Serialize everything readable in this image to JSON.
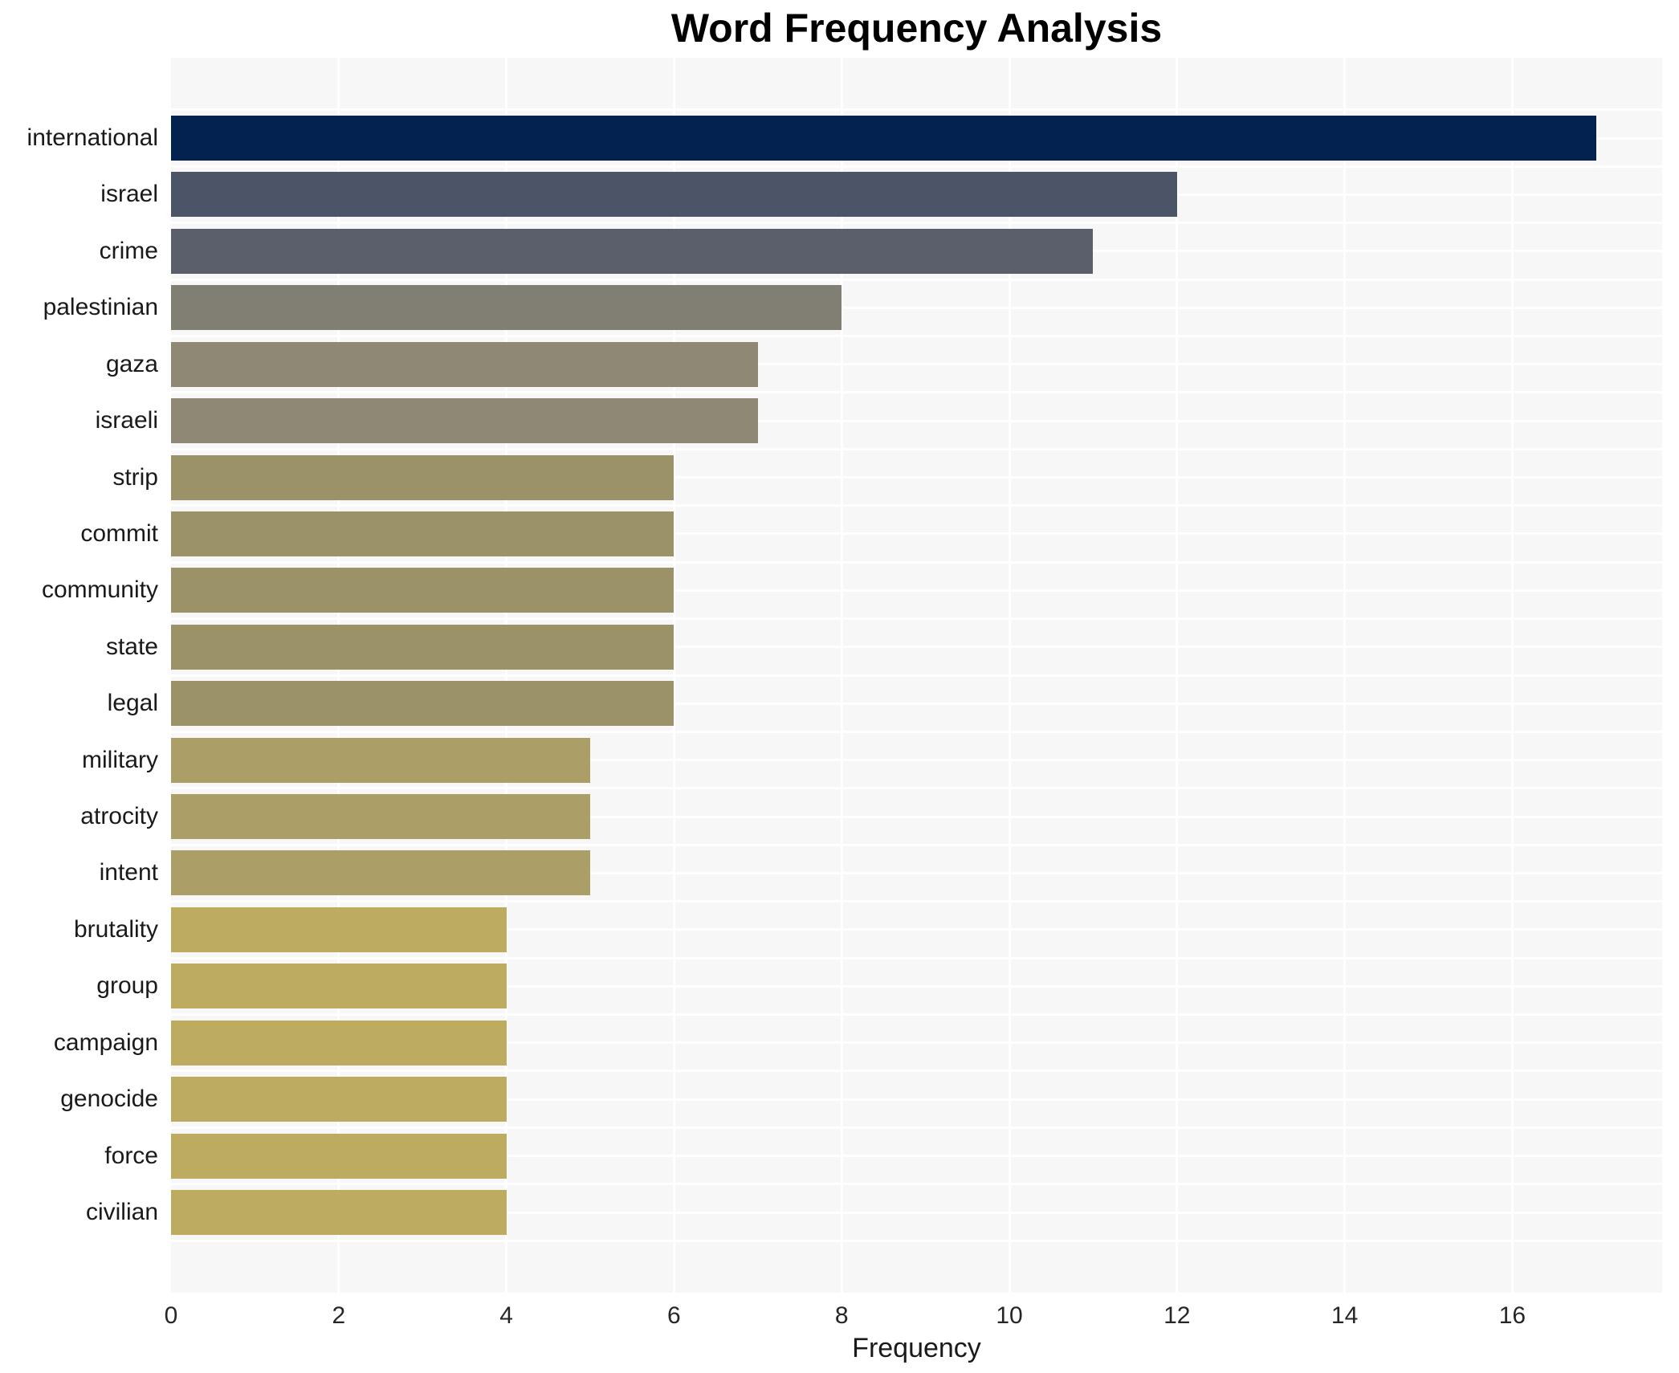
{
  "chart_data": {
    "type": "bar",
    "orientation": "horizontal",
    "title": "Word Frequency Analysis",
    "xlabel": "Frequency",
    "ylabel": "",
    "categories": [
      "international",
      "israel",
      "crime",
      "palestinian",
      "gaza",
      "israeli",
      "strip",
      "commit",
      "community",
      "state",
      "legal",
      "military",
      "atrocity",
      "intent",
      "brutality",
      "group",
      "campaign",
      "genocide",
      "force",
      "civilian"
    ],
    "values": [
      17,
      12,
      11,
      8,
      7,
      7,
      6,
      6,
      6,
      6,
      6,
      5,
      5,
      5,
      4,
      4,
      4,
      4,
      4,
      4
    ],
    "bar_colors": [
      "#032250",
      "#4c5468",
      "#5a5f6b",
      "#817e74",
      "#8e8874",
      "#8e8874",
      "#9c9267",
      "#9c9267",
      "#9c9267",
      "#9c9267",
      "#9c9267",
      "#ab9e67",
      "#ab9e67",
      "#ab9e67",
      "#bdab5f",
      "#bdab5f",
      "#bdab5f",
      "#bdab5f",
      "#bdab5f",
      "#bdab5f"
    ],
    "xticks": [
      0,
      2,
      4,
      6,
      8,
      10,
      12,
      14,
      16
    ],
    "xlim": [
      0,
      17.8
    ],
    "grid": true,
    "legend": "none",
    "colors": {
      "plot_background": "#f7f7f8",
      "figure_background": "#ffffff",
      "grid_color": "#ffffff",
      "text_color": "#1a1a1a"
    }
  }
}
